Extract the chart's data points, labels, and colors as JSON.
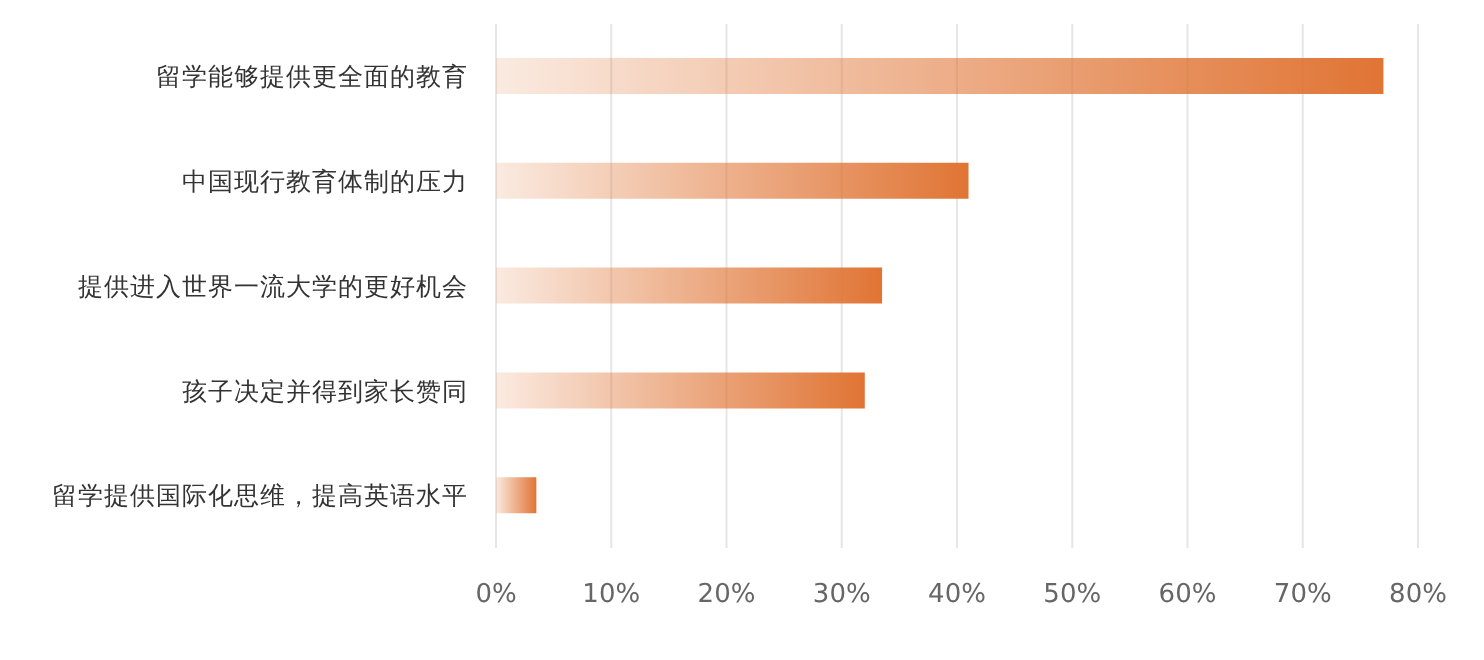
{
  "chart_data": {
    "type": "bar",
    "orientation": "horizontal",
    "categories": [
      "留学能够提供更全面的教育",
      "中国现行教育体制的压力",
      "提供进入世界一流大学的更好机会",
      "孩子决定并得到家长赞同",
      "留学提供国际化思维，提高英语水平"
    ],
    "values": [
      77,
      41,
      33.5,
      32,
      3.5
    ],
    "color": "#e07434",
    "xlim": [
      0,
      80
    ],
    "xticks": [
      {
        "value": 0,
        "label": "0%"
      },
      {
        "value": 10,
        "label": "10%"
      },
      {
        "value": 20,
        "label": "20%"
      },
      {
        "value": 30,
        "label": "30%"
      },
      {
        "value": 40,
        "label": "40%"
      },
      {
        "value": 50,
        "label": "50%"
      },
      {
        "value": 60,
        "label": "60%"
      },
      {
        "value": 70,
        "label": "70%"
      },
      {
        "value": 80,
        "label": "80%"
      }
    ],
    "grid": "x"
  }
}
